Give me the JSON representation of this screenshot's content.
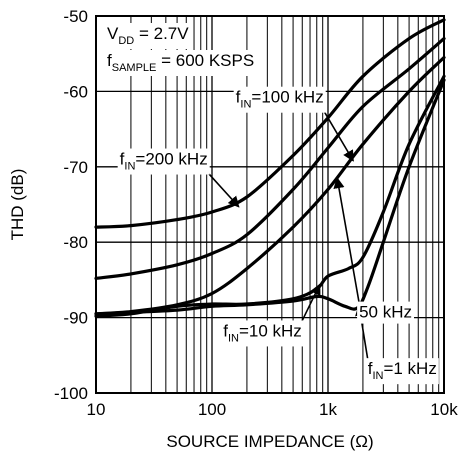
{
  "chart_data": {
    "type": "line",
    "title": "",
    "xlabel": "SOURCE IMPEDANCE (Ω)",
    "ylabel": "THD (dB)",
    "x_scale": "log",
    "xlim": [
      10,
      10000
    ],
    "ylim": [
      -100,
      -50
    ],
    "grid": true,
    "x_ticks": [
      {
        "value": 10,
        "label": "10"
      },
      {
        "value": 100,
        "label": "100"
      },
      {
        "value": 1000,
        "label": "1k"
      },
      {
        "value": 10000,
        "label": "10k"
      }
    ],
    "y_ticks": [
      {
        "value": -50,
        "label": "-50"
      },
      {
        "value": -60,
        "label": "-60"
      },
      {
        "value": -70,
        "label": "-70"
      },
      {
        "value": -80,
        "label": "-80"
      },
      {
        "value": -90,
        "label": "-90"
      },
      {
        "value": -100,
        "label": "-100"
      }
    ],
    "conditions": {
      "vdd": {
        "main": "V",
        "sub": "DD",
        "rest": " = 2.7V"
      },
      "fsample": {
        "main": "f",
        "sub": "SAMPLE",
        "rest": " = 600 KSPS"
      }
    },
    "series": [
      {
        "name_main": "f",
        "name_sub": "IN",
        "name_rest": "=200 kHz",
        "x": [
          10,
          20,
          50,
          100,
          200,
          500,
          1000,
          2000,
          5000,
          10000
        ],
        "y": [
          -78,
          -77.8,
          -77,
          -76,
          -74,
          -68.5,
          -63.5,
          -58,
          -53,
          -50.5
        ]
      },
      {
        "name_main": "f",
        "name_sub": "IN",
        "name_rest": "=100 kHz",
        "x": [
          10,
          20,
          50,
          100,
          200,
          500,
          1000,
          2000,
          5000,
          10000
        ],
        "y": [
          -84.8,
          -84.2,
          -83,
          -81.5,
          -79,
          -73,
          -67.5,
          -62,
          -57,
          -53
        ]
      },
      {
        "name_main": "",
        "name_sub": "",
        "name_rest": "50 kHz",
        "x": [
          10,
          20,
          50,
          100,
          200,
          500,
          1000,
          2000,
          5000,
          10000
        ],
        "y": [
          -89.5,
          -89.2,
          -88.3,
          -86.8,
          -83.5,
          -78,
          -73,
          -67,
          -60,
          -55.5
        ]
      },
      {
        "name_main": "f",
        "name_sub": "IN",
        "name_rest": "=10 kHz",
        "x": [
          10,
          20,
          50,
          100,
          200,
          500,
          800,
          1000,
          1500,
          2000,
          3000,
          5000,
          10000
        ],
        "y": [
          -89.8,
          -89.5,
          -88.5,
          -88.2,
          -88.2,
          -87.5,
          -86.2,
          -84.5,
          -83.5,
          -82,
          -76,
          -67,
          -58
        ]
      },
      {
        "name_main": "f",
        "name_sub": "IN",
        "name_rest": "=1 kHz",
        "x": [
          10,
          20,
          50,
          100,
          200,
          500,
          800,
          1000,
          1400,
          1800,
          2200,
          3000,
          5000,
          10000
        ],
        "y": [
          -89.5,
          -89.3,
          -89,
          -88.5,
          -88.3,
          -87.8,
          -87.2,
          -87.5,
          -88.5,
          -88.7,
          -86,
          -80,
          -70,
          -58.5
        ]
      }
    ],
    "annotations": [
      {
        "series": 0,
        "label_value": [
          16,
          -69.7
        ],
        "arrow_value": [
          170,
          -75.3
        ]
      },
      {
        "series": 1,
        "label_value": [
          160,
          -61.5
        ],
        "arrow_value": [
          1650,
          -69.2
        ]
      },
      {
        "series": 2,
        "label_value": [
          5300,
          -90
        ],
        "arrow_value": [
          1200,
          -71.5
        ]
      },
      {
        "series": 3,
        "label_value": [
          125,
          -92.5
        ],
        "arrow_value": [
          850,
          -85.6
        ]
      },
      {
        "series": 4,
        "label_value": [
          2200,
          -97.5
        ],
        "arrow_value": [
          1850,
          -88.4
        ]
      }
    ]
  }
}
